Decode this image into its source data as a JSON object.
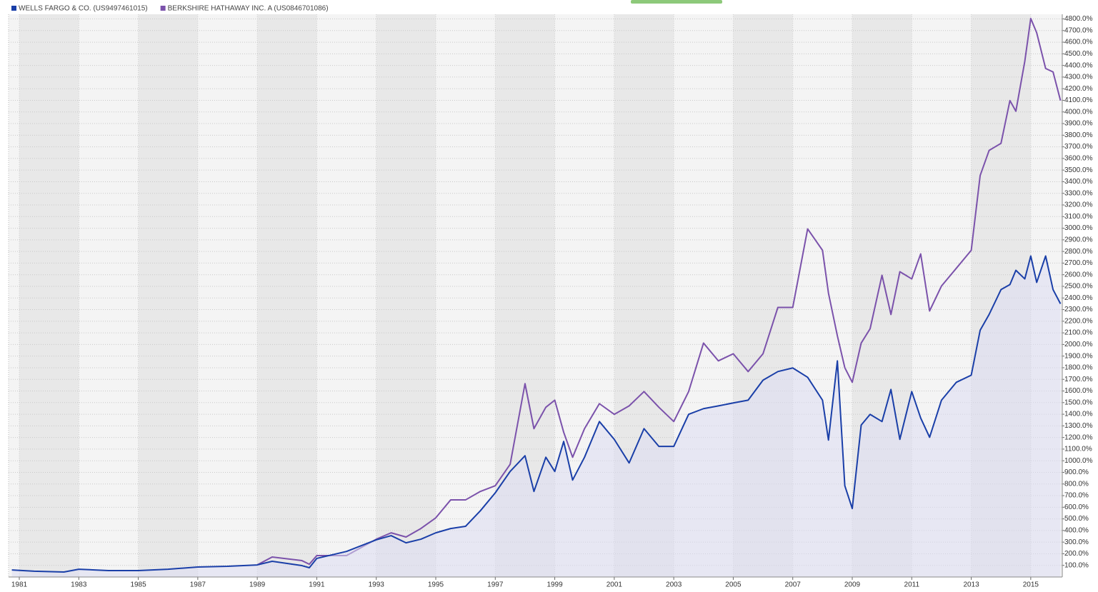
{
  "chart_data": {
    "type": "line",
    "x": [
      1980.75,
      1981.5,
      1982.5,
      1983,
      1984,
      1985,
      1986,
      1987,
      1988,
      1989,
      1989.5,
      1990.5,
      1990.75,
      1991,
      1992,
      1993,
      1993.5,
      1994,
      1994.5,
      1995,
      1995.5,
      1996,
      1996.5,
      1997,
      1997.5,
      1998,
      1998.3,
      1998.7,
      1999,
      1999.3,
      1999.6,
      2000,
      2000.5,
      2001,
      2001.5,
      2002,
      2002.5,
      2003,
      2003.5,
      2004,
      2004.5,
      2005,
      2005.5,
      2006,
      2006.5,
      2007,
      2007.5,
      2008,
      2008.2,
      2008.5,
      2008.75,
      2009,
      2009.3,
      2009.6,
      2010,
      2010.3,
      2010.6,
      2011,
      2011.3,
      2011.6,
      2012,
      2012.5,
      2013,
      2013.3,
      2013.6,
      2014,
      2014.3,
      2014.5,
      2014.8,
      2015,
      2015.2,
      2015.5,
      2015.75,
      2016
    ],
    "series": [
      {
        "name": "WELLS FARGO & CO. (US9497461015)",
        "color": "#1a3fa8",
        "area": true,
        "values": [
          61,
          50,
          43,
          67,
          55,
          55,
          67,
          86,
          92,
          104,
          135,
          98,
          80,
          160,
          220,
          320,
          356,
          294,
          325,
          380,
          417,
          436,
          570,
          724,
          908,
          1043,
          736,
          1030,
          908,
          1166,
          834,
          1030,
          1337,
          1184,
          981,
          1276,
          1123,
          1123,
          1399,
          1448,
          1472,
          1497,
          1521,
          1693,
          1767,
          1798,
          1718,
          1521,
          1178,
          1859,
          785,
          589,
          1307,
          1399,
          1337,
          1613,
          1184,
          1595,
          1368,
          1202,
          1521,
          1675,
          1736,
          2123,
          2258,
          2472,
          2515,
          2638,
          2564,
          2761,
          2534,
          2761,
          2472,
          2350
        ]
      },
      {
        "name": "BERKSHIRE HATHAWAY INC. A (US0846701086)",
        "color": "#7b52ab",
        "values": [
          null,
          null,
          null,
          null,
          null,
          null,
          null,
          null,
          null,
          104,
          172,
          141,
          110,
          184,
          184,
          325,
          380,
          344,
          417,
          509,
          663,
          663,
          736,
          785,
          969,
          1663,
          1276,
          1460,
          1521,
          1245,
          1030,
          1276,
          1491,
          1399,
          1472,
          1595,
          1460,
          1337,
          1595,
          2012,
          1859,
          1920,
          1767,
          1920,
          2319,
          2319,
          2994,
          2810,
          2442,
          2074,
          1800,
          1675,
          2012,
          2135,
          2595,
          2258,
          2626,
          2564,
          2779,
          2288,
          2503,
          2656,
          2810,
          3454,
          3669,
          3730,
          4098,
          4006,
          4436,
          4804,
          4681,
          4374,
          4344,
          4098
        ]
      }
    ],
    "xlim": [
      1980.64,
      2016.06
    ],
    "xticks": [
      1981,
      1983,
      1985,
      1987,
      1989,
      1991,
      1993,
      1995,
      1997,
      1999,
      2001,
      2003,
      2005,
      2007,
      2009,
      2011,
      2013,
      2015
    ],
    "ylim": [
      0,
      4840
    ],
    "yticks": [
      {
        "value": 100,
        "label": "100.0%"
      },
      {
        "value": 200,
        "label": "200.0%"
      },
      {
        "value": 300,
        "label": "300.0%"
      },
      {
        "value": 400,
        "label": "400.0%"
      },
      {
        "value": 500,
        "label": "500.0%"
      },
      {
        "value": 600,
        "label": "600.0%"
      },
      {
        "value": 700,
        "label": "700.0%"
      },
      {
        "value": 800,
        "label": "800.0%"
      },
      {
        "value": 900,
        "label": "900.0%"
      },
      {
        "value": 1000,
        "label": "1000.0%"
      },
      {
        "value": 1100,
        "label": "1100.0%"
      },
      {
        "value": 1200,
        "label": "1200.0%"
      },
      {
        "value": 1300,
        "label": "1300.0%"
      },
      {
        "value": 1400,
        "label": "1400.0%"
      },
      {
        "value": 1500,
        "label": "1500.0%"
      },
      {
        "value": 1600,
        "label": "1600.0%"
      },
      {
        "value": 1700,
        "label": "1700.0%"
      },
      {
        "value": 1800,
        "label": "1800.0%"
      },
      {
        "value": 1900,
        "label": "1900.0%"
      },
      {
        "value": 2000,
        "label": "2000.0%"
      },
      {
        "value": 2100,
        "label": "2100.0%"
      },
      {
        "value": 2200,
        "label": "2200.0%"
      },
      {
        "value": 2300,
        "label": "2300.0%"
      },
      {
        "value": 2400,
        "label": "2400.0%"
      },
      {
        "value": 2500,
        "label": "2500.0%"
      },
      {
        "value": 2600,
        "label": "2600.0%"
      },
      {
        "value": 2700,
        "label": "2700.0%"
      },
      {
        "value": 2800,
        "label": "2800.0%"
      },
      {
        "value": 2900,
        "label": "2900.0%"
      },
      {
        "value": 3000,
        "label": "3000.0%"
      },
      {
        "value": 3100,
        "label": "3100.0%"
      },
      {
        "value": 3200,
        "label": "3200.0%"
      },
      {
        "value": 3300,
        "label": "3300.0%"
      },
      {
        "value": 3400,
        "label": "3400.0%"
      },
      {
        "value": 3500,
        "label": "3500.0%"
      },
      {
        "value": 3600,
        "label": "3600.0%"
      },
      {
        "value": 3700,
        "label": "3700.0%"
      },
      {
        "value": 3800,
        "label": "3800.0%"
      },
      {
        "value": 3900,
        "label": "3900.0%"
      },
      {
        "value": 4000,
        "label": "4000.0%"
      },
      {
        "value": 4100,
        "label": "4100.0%"
      },
      {
        "value": 4200,
        "label": "4200.0%"
      },
      {
        "value": 4300,
        "label": "4300.0%"
      },
      {
        "value": 4400,
        "label": "4400.0%"
      },
      {
        "value": 4500,
        "label": "4500.0%"
      },
      {
        "value": 4600,
        "label": "4600.0%"
      },
      {
        "value": 4700,
        "label": "4700.0%"
      },
      {
        "value": 4800,
        "label": "4800.0%"
      }
    ],
    "grid": true,
    "legend": "top-left"
  }
}
